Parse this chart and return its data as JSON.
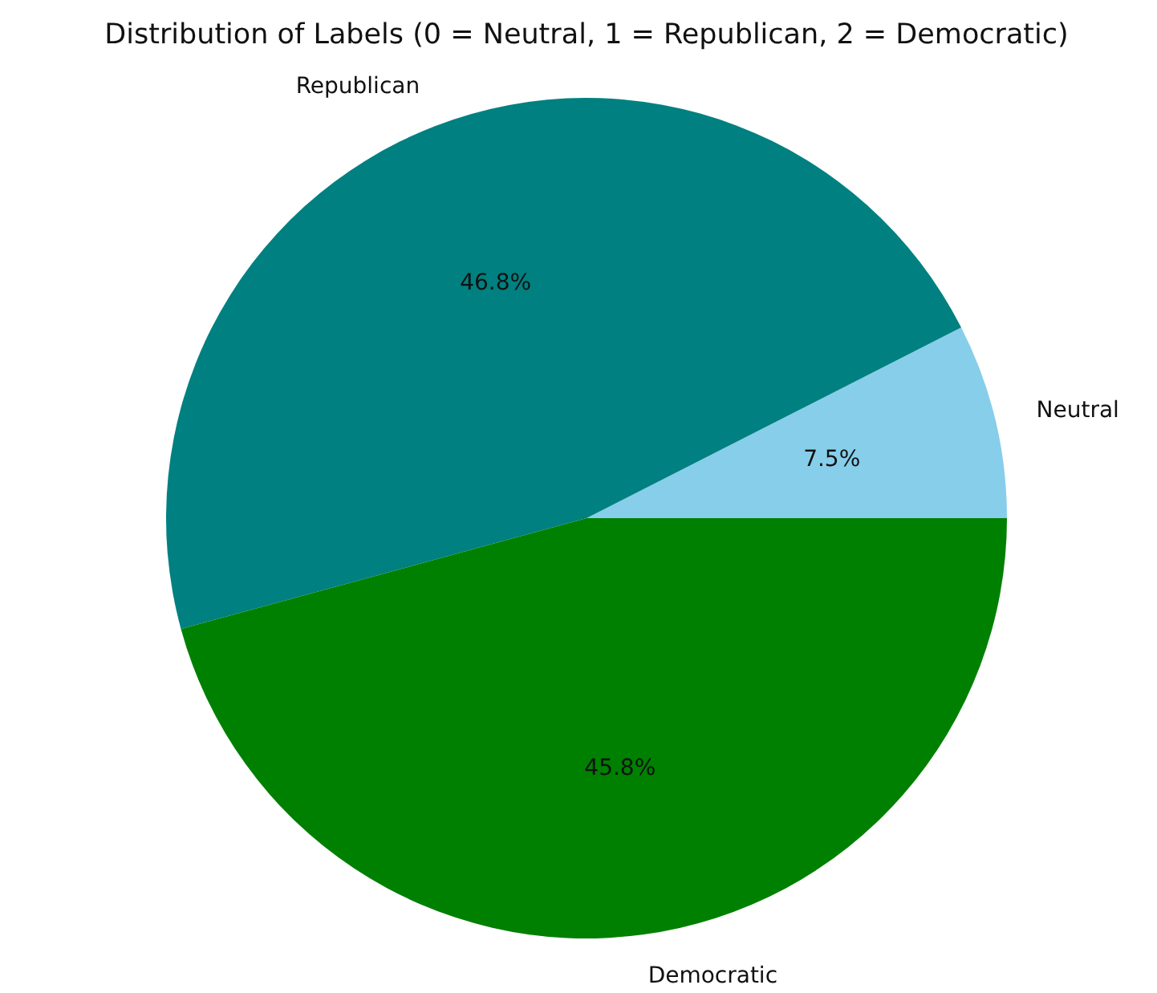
{
  "chart_data": {
    "type": "pie",
    "title": "Distribution of Labels (0 = Neutral, 1 = Republican, 2 = Democratic)",
    "categories": [
      "Neutral",
      "Republican",
      "Democratic"
    ],
    "values": [
      7.5,
      46.8,
      45.8
    ],
    "colors": [
      "#87ceeb",
      "#008080",
      "#008000"
    ],
    "value_labels": [
      "7.5%",
      "46.8%",
      "45.8%"
    ]
  }
}
